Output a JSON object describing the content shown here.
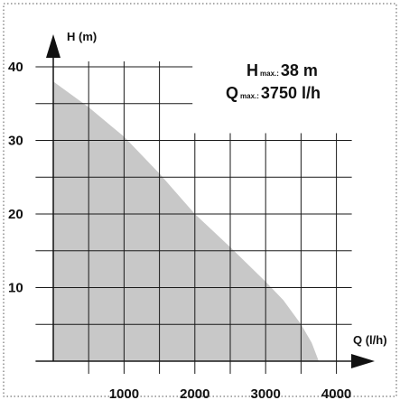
{
  "chart_data": {
    "type": "area",
    "title": "",
    "xlabel": "Q (l/h)",
    "ylabel": "H (m)",
    "xlim": [
      -250,
      4250
    ],
    "ylim": [
      0,
      45
    ],
    "x_ticks": [
      1000,
      2000,
      3000,
      4000
    ],
    "y_ticks": [
      10,
      20,
      30,
      40
    ],
    "grid": true,
    "x": [
      0,
      500,
      1000,
      1500,
      2000,
      2500,
      3000,
      3250,
      3500,
      3650,
      3750
    ],
    "series": [
      {
        "values": [
          38,
          34.5,
          30.5,
          25.5,
          20,
          15.5,
          10.8,
          8.3,
          5,
          2.5,
          0
        ]
      }
    ],
    "annotations": {
      "hmax_prefix": "H",
      "hmax_sub": "max.:",
      "hmax_value": "38 m",
      "qmax_prefix": "Q",
      "qmax_sub": "max.:",
      "qmax_value": "3750 l/h"
    },
    "colors": {
      "fill": "#c8c8c8",
      "grid": "#1a1a1a",
      "border": "#555555"
    }
  }
}
